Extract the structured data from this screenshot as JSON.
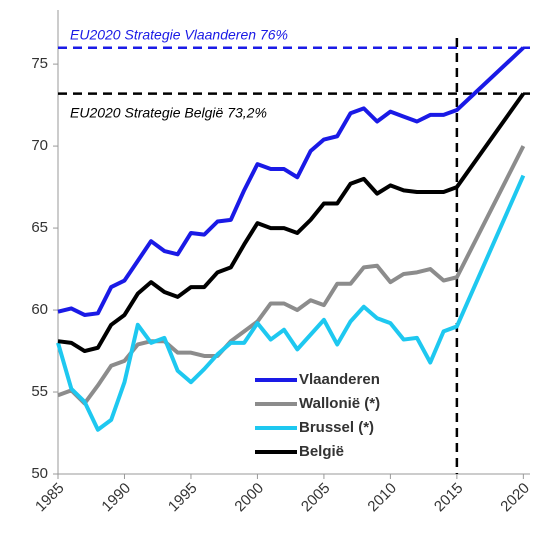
{
  "chart_data": {
    "type": "line",
    "x": [
      1985,
      1986,
      1987,
      1988,
      1989,
      1990,
      1991,
      1992,
      1993,
      1994,
      1995,
      1996,
      1997,
      1998,
      1999,
      2000,
      2001,
      2002,
      2003,
      2004,
      2005,
      2006,
      2007,
      2008,
      2009,
      2010,
      2011,
      2012,
      2013,
      2014,
      2015,
      2020
    ],
    "series": [
      {
        "name": "Vlaanderen",
        "color": "#1a1ae6",
        "values": [
          59.9,
          60.1,
          59.7,
          59.8,
          61.4,
          61.8,
          63.0,
          64.2,
          63.6,
          63.4,
          64.7,
          64.6,
          65.4,
          65.5,
          67.3,
          68.9,
          68.6,
          68.6,
          68.1,
          69.7,
          70.4,
          70.6,
          72.0,
          72.3,
          71.5,
          72.1,
          71.8,
          71.5,
          71.9,
          71.9,
          72.2,
          76.0
        ]
      },
      {
        "name": "Wallonië (*)",
        "color": "#8c8c8c",
        "values": [
          54.8,
          55.1,
          54.3,
          55.4,
          56.6,
          56.9,
          57.9,
          58.1,
          58.1,
          57.4,
          57.4,
          57.2,
          57.2,
          58.1,
          58.7,
          59.3,
          60.4,
          60.4,
          60.0,
          60.6,
          60.3,
          61.6,
          61.6,
          62.6,
          62.7,
          61.7,
          62.2,
          62.3,
          62.5,
          61.8,
          62.0,
          70.0
        ]
      },
      {
        "name": "Brussel (*)",
        "color": "#1ec8f0",
        "values": [
          58.0,
          55.2,
          54.4,
          52.7,
          53.3,
          55.6,
          59.1,
          58.0,
          58.3,
          56.3,
          55.6,
          56.4,
          57.3,
          58.0,
          58.0,
          59.2,
          58.2,
          58.8,
          57.6,
          58.5,
          59.4,
          57.9,
          59.3,
          60.2,
          59.5,
          59.2,
          58.2,
          58.3,
          56.8,
          58.7,
          59.0,
          68.2
        ]
      },
      {
        "name": "België",
        "color": "#000000",
        "values": [
          58.1,
          58.0,
          57.5,
          57.7,
          59.1,
          59.7,
          61.0,
          61.7,
          61.1,
          60.8,
          61.4,
          61.4,
          62.3,
          62.6,
          64.0,
          65.3,
          65.0,
          65.0,
          64.7,
          65.5,
          66.5,
          66.5,
          67.7,
          68.0,
          67.1,
          67.6,
          67.3,
          67.2,
          67.2,
          67.2,
          67.5,
          73.2
        ]
      }
    ],
    "reference_lines": [
      {
        "label": "EU2020 Strategie Vlaanderen 76%",
        "value": 76,
        "color": "#1a1ae6"
      },
      {
        "label": "EU2020 Strategie België 73,2%",
        "value": 73.2,
        "color": "#000000"
      }
    ],
    "vertical_line": 2015,
    "xlim": [
      1985,
      2020.5
    ],
    "ylim": [
      50,
      78.3
    ],
    "xticks": [
      1985,
      1990,
      1995,
      2000,
      2005,
      2010,
      2015,
      2020
    ],
    "yticks": [
      50,
      55,
      60,
      65,
      70,
      75
    ],
    "legend": "lower-right"
  }
}
